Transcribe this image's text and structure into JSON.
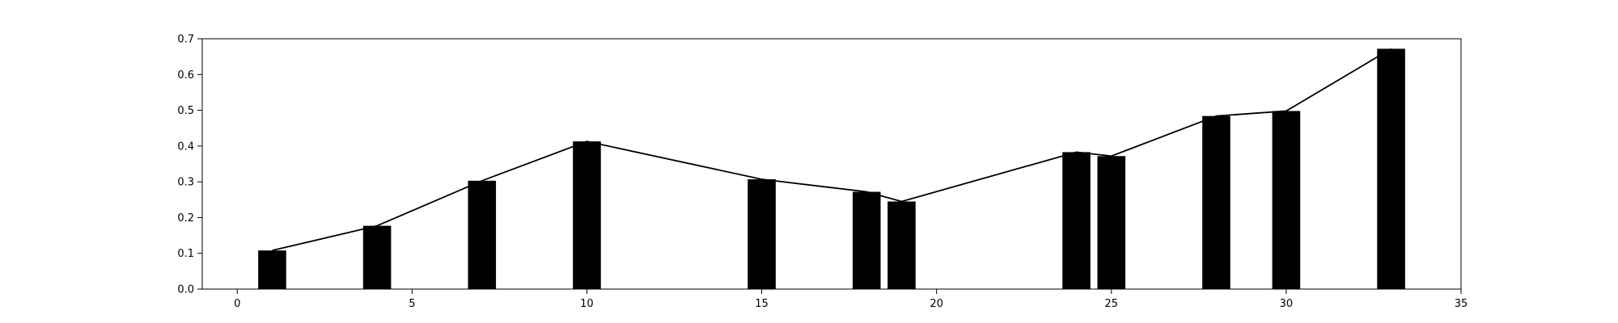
{
  "chart_data": {
    "type": "bar",
    "title": "",
    "xlabel": "",
    "ylabel": "",
    "xlim": [
      -1,
      35
    ],
    "ylim": [
      0,
      0.7
    ],
    "xticks": [
      0,
      5,
      10,
      15,
      20,
      25,
      30,
      35
    ],
    "yticks": [
      0.0,
      0.1,
      0.2,
      0.3,
      0.4,
      0.5,
      0.6,
      0.7
    ],
    "xtick_labels": [
      "0",
      "5",
      "10",
      "15",
      "20",
      "25",
      "30",
      "35"
    ],
    "ytick_labels": [
      "0.0",
      "0.1",
      "0.2",
      "0.3",
      "0.4",
      "0.5",
      "0.6",
      "0.7"
    ],
    "bar_width": 0.8,
    "bars": {
      "x": [
        1,
        4,
        7,
        10,
        15,
        18,
        19,
        24,
        25,
        28,
        30,
        33
      ],
      "values": [
        0.108,
        0.177,
        0.303,
        0.413,
        0.307,
        0.272,
        0.245,
        0.383,
        0.372,
        0.484,
        0.498,
        0.672
      ]
    },
    "line": {
      "x": [
        1,
        4,
        7,
        10,
        15,
        18,
        19,
        24,
        25,
        28,
        30,
        33
      ],
      "values": [
        0.108,
        0.177,
        0.303,
        0.413,
        0.307,
        0.272,
        0.245,
        0.383,
        0.372,
        0.484,
        0.498,
        0.672
      ]
    },
    "grid": false,
    "colors": {
      "bars": "#000000",
      "line": "#000000",
      "axes": "#000000",
      "background": "#ffffff"
    }
  }
}
